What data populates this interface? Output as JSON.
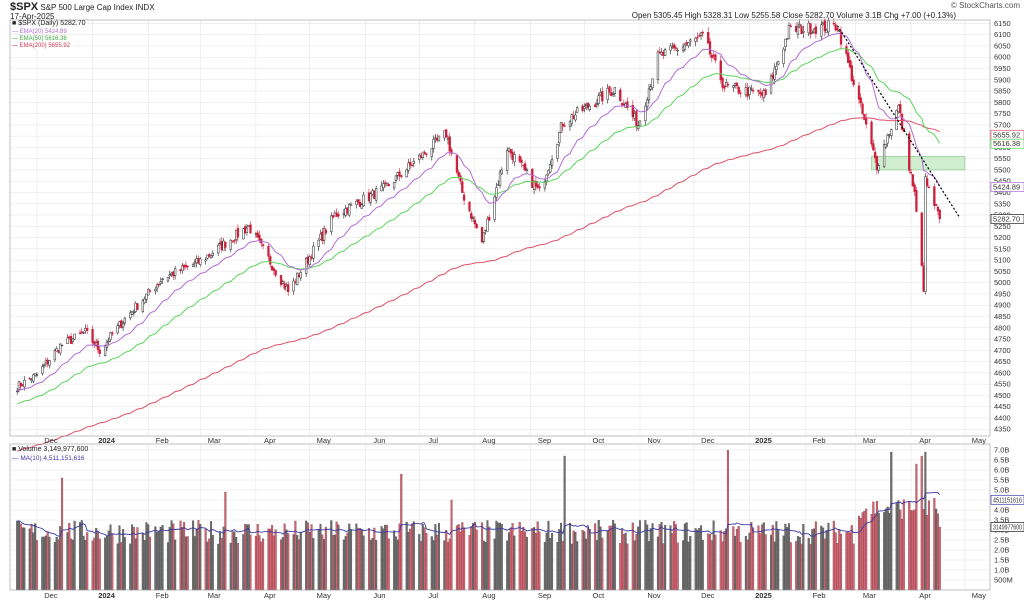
{
  "header": {
    "symbol": "$SPX",
    "name": "S&P 500 Large Cap Index",
    "exchange": "INDX",
    "date": "17-Apr-2025",
    "quote": "Open 5305.45  High 5328.31  Low 5255.58  Close 5282.70  Volume 3.1B  Chg +7.00 (+0.13%)",
    "watermark": "© StockCharts.com"
  },
  "legend": {
    "price": "$SPX (Daily) 5282.70",
    "ema20": "EMA(20) 5424.89",
    "ema50": "EMA(50) 5616.38",
    "ema200": "EMA(200) 5655.92",
    "volume": "Volume 3,149,977,600",
    "ma10": "MA(10) 4,511,151,616"
  },
  "colors": {
    "up": "#222222",
    "down": "#cc1f3b",
    "ema20": "#b26dd6",
    "ema50": "#5bd65b",
    "ema200": "#e0506a",
    "trend": "#000000",
    "zone": "#bfe8bf",
    "grid": "#e2e2e2",
    "vol_up": "#6d6d6d",
    "vol_down": "#d9606f",
    "ma10": "#3a3aa8"
  },
  "chart_data": [
    {
      "type": "candlestick",
      "title": "$SPX (Daily) 5282.70",
      "x_labels": [
        "Dec",
        "2024",
        "Feb",
        "Mar",
        "Apr",
        "May",
        "Jun",
        "Jul",
        "Aug",
        "Sep",
        "Oct",
        "Nov",
        "Dec",
        "2025",
        "Feb",
        "Mar",
        "Apr",
        "May"
      ],
      "y_ticks": [
        4350,
        4400,
        4450,
        4500,
        4550,
        4600,
        4650,
        4700,
        4750,
        4800,
        4850,
        4900,
        4950,
        5000,
        5050,
        5100,
        5150,
        5200,
        5250,
        5300,
        5350,
        5400,
        5450,
        5500,
        5550,
        5600,
        5650,
        5700,
        5750,
        5800,
        5850,
        5900,
        5950,
        6000,
        6050,
        6100,
        6150
      ],
      "ylim": [
        4320,
        6165
      ],
      "grid": true,
      "close_keypoints": [
        [
          "2023-11-20",
          4540
        ],
        [
          "2023-12-01",
          4590
        ],
        [
          "2023-12-14",
          4720
        ],
        [
          "2023-12-28",
          4780
        ],
        [
          "2024-01-05",
          4700
        ],
        [
          "2024-01-19",
          4840
        ],
        [
          "2024-02-09",
          5020
        ],
        [
          "2024-02-29",
          5090
        ],
        [
          "2024-03-28",
          5250
        ],
        [
          "2024-04-19",
          4960
        ],
        [
          "2024-05-15",
          5300
        ],
        [
          "2024-06-12",
          5420
        ],
        [
          "2024-07-16",
          5660
        ],
        [
          "2024-07-25",
          5400
        ],
        [
          "2024-08-05",
          5180
        ],
        [
          "2024-08-19",
          5600
        ],
        [
          "2024-09-06",
          5400
        ],
        [
          "2024-09-19",
          5710
        ],
        [
          "2024-10-18",
          5860
        ],
        [
          "2024-10-31",
          5700
        ],
        [
          "2024-11-11",
          6000
        ],
        [
          "2024-12-06",
          6090
        ],
        [
          "2024-12-18",
          5870
        ],
        [
          "2025-01-10",
          5830
        ],
        [
          "2025-01-23",
          6120
        ],
        [
          "2025-02-19",
          6140
        ],
        [
          "2025-03-13",
          5520
        ],
        [
          "2025-03-25",
          5780
        ],
        [
          "2025-04-03",
          5390
        ],
        [
          "2025-04-08",
          4980
        ],
        [
          "2025-04-09",
          5450
        ],
        [
          "2025-04-17",
          5282.7
        ]
      ],
      "last_close": 5282.7,
      "overlays": [
        {
          "name": "EMA(20)",
          "last": 5424.89
        },
        {
          "name": "EMA(50)",
          "last": 5616.38
        },
        {
          "name": "EMA(200)",
          "last": 5655.92
        }
      ],
      "value_markers": [
        "5655.92",
        "5616.38",
        "5424.89",
        "5282.70"
      ],
      "resistance_zone": [
        5500,
        5560
      ],
      "trendline": {
        "from": [
          "2025-02-19",
          6140
        ],
        "to": [
          "2025-04-28",
          5290
        ]
      }
    },
    {
      "type": "bar",
      "title": "Volume 3,149,977,600",
      "y_ticks": [
        "500M",
        "1.0B",
        "1.5B",
        "2.0B",
        "2.5B",
        "3.0B",
        "3.5B",
        "4.0B",
        "4.5B",
        "5.0B",
        "5.5B",
        "6.0B",
        "6.5B",
        "7.0B"
      ],
      "ylim": [
        0,
        7.3
      ],
      "unit": "billions",
      "baseline": 2.9,
      "spikes": [
        [
          "2023-12-15",
          5.6
        ],
        [
          "2024-03-15",
          4.9
        ],
        [
          "2024-06-21",
          5.8
        ],
        [
          "2024-07-19",
          4.5
        ],
        [
          "2024-09-20",
          6.7
        ],
        [
          "2024-12-20",
          7.0
        ],
        [
          "2025-03-21",
          6.9
        ],
        [
          "2025-04-04",
          6.3
        ],
        [
          "2025-04-07",
          6.7
        ],
        [
          "2025-04-09",
          6.9
        ]
      ],
      "last_volume": 3.15,
      "overlays": [
        {
          "name": "MA(10)",
          "last": 4.51
        }
      ],
      "value_markers": [
        "4511151616",
        "3149977600"
      ]
    }
  ]
}
